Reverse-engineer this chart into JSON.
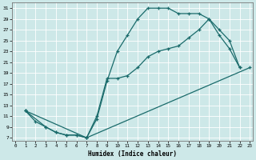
{
  "xlabel": "Humidex (Indice chaleur)",
  "bg_color": "#cde8e8",
  "line_color": "#1a6b6b",
  "xlim": [
    -0.3,
    23.3
  ],
  "ylim": [
    6.5,
    32
  ],
  "yticks": [
    7,
    9,
    11,
    13,
    15,
    17,
    19,
    21,
    23,
    25,
    27,
    29,
    31
  ],
  "xticks": [
    0,
    1,
    2,
    3,
    4,
    5,
    6,
    7,
    8,
    9,
    10,
    11,
    12,
    13,
    14,
    15,
    16,
    17,
    18,
    19,
    20,
    21,
    22,
    23
  ],
  "line1_x": [
    1,
    2,
    3,
    4,
    5,
    6,
    7,
    8,
    9,
    10,
    11,
    12,
    13,
    14,
    15,
    16,
    17,
    18,
    19,
    20,
    21,
    22
  ],
  "line1_y": [
    12,
    10,
    9,
    8,
    7.5,
    7.5,
    7,
    10.5,
    17.5,
    23,
    26,
    29,
    31,
    31,
    31,
    30,
    30,
    30,
    29,
    27,
    25,
    20
  ],
  "line2_x": [
    1,
    3,
    4,
    5,
    6,
    7,
    8,
    9,
    10,
    11,
    12,
    13,
    14,
    15,
    16,
    17,
    18,
    19,
    20,
    21,
    22
  ],
  "line2_y": [
    12,
    9,
    8,
    7.5,
    7.5,
    7,
    11,
    18,
    18,
    18.5,
    20,
    22,
    23,
    23.5,
    24,
    25.5,
    27,
    29,
    26,
    23.5,
    20
  ],
  "line3_x": [
    1,
    7,
    23
  ],
  "line3_y": [
    12,
    7,
    20
  ]
}
